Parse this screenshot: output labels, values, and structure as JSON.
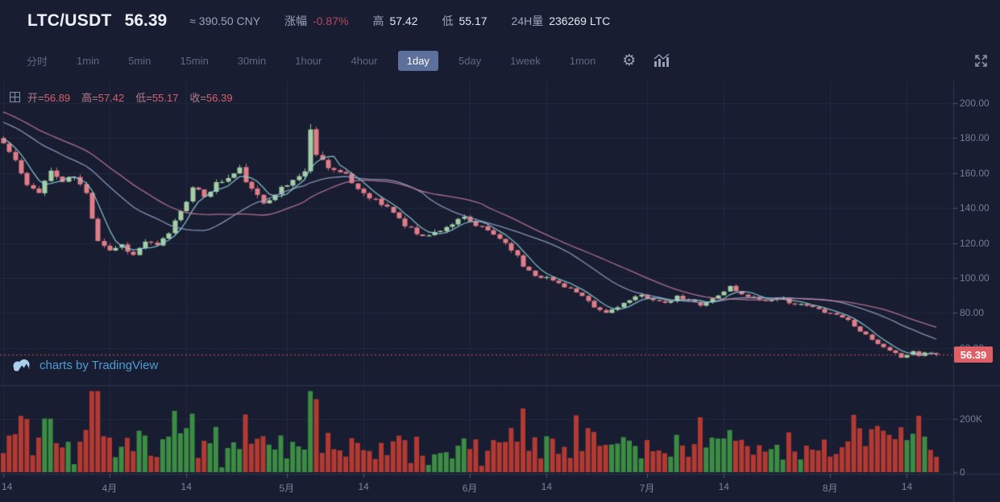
{
  "header": {
    "symbol": "LTC/USDT",
    "last_price": "56.39",
    "approx_cny": "≈ 390.50 CNY",
    "change_label": "涨幅",
    "change_value": "-0.87%",
    "high_label": "高",
    "high_value": "57.42",
    "low_label": "低",
    "low_value": "55.17",
    "volume_label": "24H量",
    "volume_value": "236269 LTC"
  },
  "toolbar": {
    "intervals": [
      "分时",
      "1min",
      "5min",
      "15min",
      "30min",
      "1hour",
      "4hour",
      "1day",
      "5day",
      "1week",
      "1mon"
    ],
    "selected": "1day",
    "settings_glyph": "⚙",
    "icons": [
      "settings-icon",
      "indicator-icon",
      "fullscreen-icon"
    ]
  },
  "legend": {
    "open_label": "开=",
    "open_value": "56.89",
    "high_label": "高=",
    "high_value": "57.42",
    "low_label": "低=",
    "low_value": "55.17",
    "close_label": "收=",
    "close_value": "56.39"
  },
  "attribution": "charts by TradingView",
  "chart_data": {
    "type": "candlestick+volume",
    "title": "LTC/USDT 1day",
    "price_tag": "56.39",
    "current_price": 56.39,
    "price_axis_ticks": [
      "200.00",
      "180.00",
      "160.00",
      "140.00",
      "120.00",
      "100.00",
      "80.00",
      "60.00"
    ],
    "volume_axis_ticks": [
      {
        "label": "200K",
        "v": 200
      },
      {
        "label": "0",
        "v": 0
      }
    ],
    "time_axis": [
      {
        "day": 0,
        "label": "14"
      },
      {
        "day": 18,
        "label": "4月"
      },
      {
        "day": 31,
        "label": "14"
      },
      {
        "day": 48,
        "label": "5月"
      },
      {
        "day": 61,
        "label": "14"
      },
      {
        "day": 79,
        "label": "6月"
      },
      {
        "day": 92,
        "label": "14"
      },
      {
        "day": 109,
        "label": "7月"
      },
      {
        "day": 122,
        "label": "14"
      },
      {
        "day": 140,
        "label": "8月"
      },
      {
        "day": 153,
        "label": "14"
      }
    ],
    "days_total": 159,
    "close_anchors": [
      [
        0,
        177
      ],
      [
        2,
        167
      ],
      [
        4,
        152
      ],
      [
        6,
        150
      ],
      [
        8,
        161
      ],
      [
        10,
        155
      ],
      [
        12,
        158
      ],
      [
        14,
        148
      ],
      [
        16,
        122
      ],
      [
        18,
        116
      ],
      [
        20,
        119
      ],
      [
        22,
        113
      ],
      [
        24,
        121
      ],
      [
        26,
        118
      ],
      [
        28,
        126
      ],
      [
        30,
        139
      ],
      [
        32,
        151
      ],
      [
        34,
        147
      ],
      [
        36,
        154
      ],
      [
        38,
        157
      ],
      [
        40,
        162
      ],
      [
        42,
        150
      ],
      [
        44,
        143
      ],
      [
        46,
        149
      ],
      [
        48,
        153
      ],
      [
        50,
        159
      ],
      [
        51,
        161
      ],
      [
        52,
        184
      ],
      [
        53,
        172
      ],
      [
        54,
        167
      ],
      [
        56,
        162
      ],
      [
        58,
        158
      ],
      [
        60,
        151
      ],
      [
        62,
        147
      ],
      [
        64,
        142
      ],
      [
        66,
        138
      ],
      [
        68,
        130
      ],
      [
        70,
        126
      ],
      [
        72,
        124
      ],
      [
        74,
        128
      ],
      [
        76,
        131
      ],
      [
        78,
        134
      ],
      [
        80,
        130
      ],
      [
        82,
        127
      ],
      [
        84,
        123
      ],
      [
        86,
        117
      ],
      [
        88,
        107
      ],
      [
        90,
        102
      ],
      [
        92,
        100
      ],
      [
        94,
        97
      ],
      [
        96,
        94
      ],
      [
        98,
        89
      ],
      [
        100,
        83
      ],
      [
        102,
        80
      ],
      [
        104,
        84
      ],
      [
        106,
        87
      ],
      [
        108,
        90
      ],
      [
        110,
        88
      ],
      [
        112,
        85
      ],
      [
        114,
        89
      ],
      [
        116,
        87
      ],
      [
        118,
        85
      ],
      [
        120,
        88
      ],
      [
        122,
        92
      ],
      [
        123,
        96
      ],
      [
        124,
        92
      ],
      [
        126,
        90
      ],
      [
        128,
        88
      ],
      [
        130,
        87
      ],
      [
        132,
        88
      ],
      [
        134,
        85
      ],
      [
        136,
        84
      ],
      [
        138,
        82
      ],
      [
        140,
        80
      ],
      [
        142,
        78
      ],
      [
        144,
        73
      ],
      [
        146,
        67
      ],
      [
        148,
        62
      ],
      [
        150,
        58
      ],
      [
        152,
        55
      ],
      [
        154,
        58
      ],
      [
        155,
        55.5
      ],
      [
        156,
        57.5
      ],
      [
        157,
        56.9
      ],
      [
        158,
        56.39
      ]
    ],
    "spike_day": 52,
    "spike_high": 188,
    "last_candle": {
      "open": 56.89,
      "high": 57.42,
      "low": 55.17,
      "close": 56.39
    },
    "prehistory": {
      "start": 214,
      "days": 30
    },
    "ma_periods": [
      5,
      20,
      30
    ],
    "seed": 11,
    "colors": {
      "up": "#a4cfa6",
      "up_border": "#8fbf93",
      "down": "#df7e88",
      "down_border": "#d06b77",
      "vol_up": "#3c8c44",
      "vol_down": "#b23a33",
      "ma_fast": "#8fd2da",
      "ma_mid": "#98a8ca",
      "ma_slow": "#c97da1",
      "grid": "rgba(130,145,185,0.10)",
      "axis_line": "#2c3450",
      "tick": "#4d5673",
      "price_line": "#c9505c",
      "price_tag_bg": "#df5f66"
    }
  }
}
